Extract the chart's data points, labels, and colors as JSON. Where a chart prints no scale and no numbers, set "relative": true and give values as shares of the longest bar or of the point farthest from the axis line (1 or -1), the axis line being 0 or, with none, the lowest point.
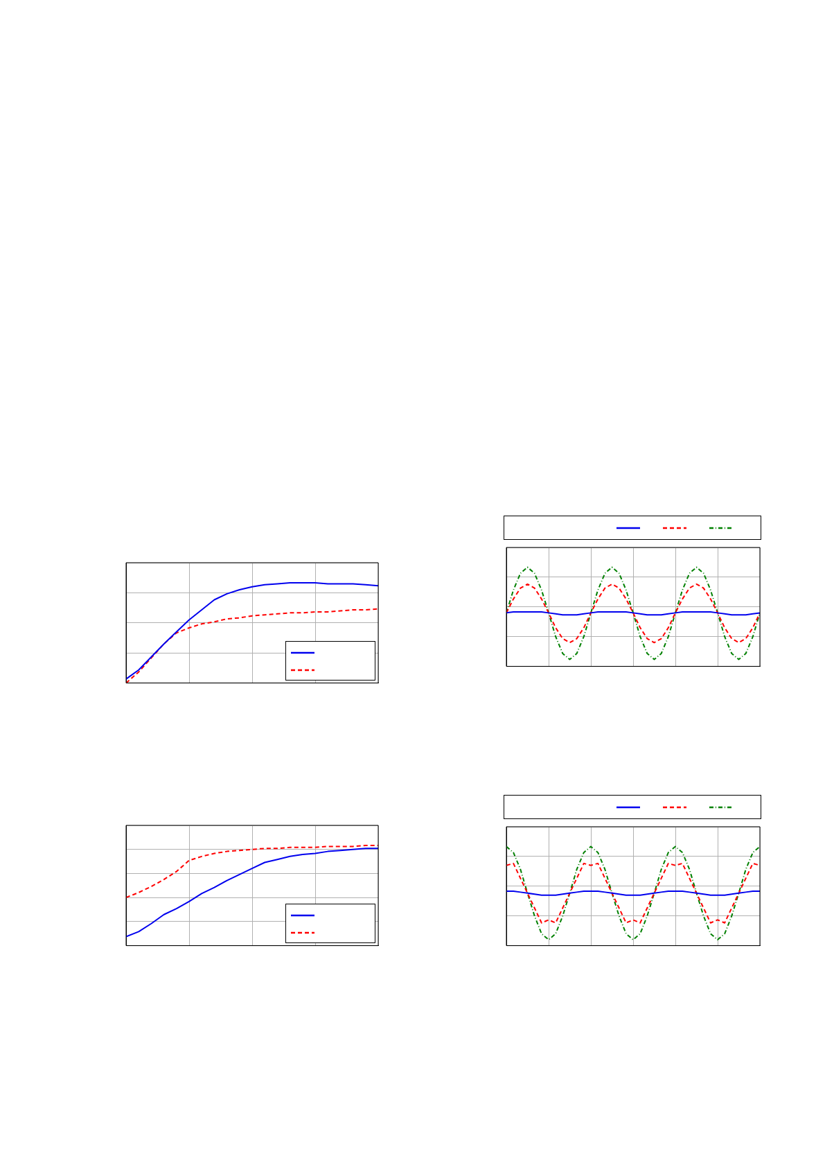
{
  "chart_data": [
    {
      "type": "line",
      "relative": true,
      "grid": true,
      "categories": [
        null,
        null,
        null,
        null,
        null,
        null,
        null,
        null,
        null,
        null,
        null,
        null,
        null,
        null,
        null,
        null,
        null,
        null,
        null,
        null,
        null
      ],
      "series": [
        {
          "color": "#0000ee",
          "line_style": "solid",
          "values": [
            0.04,
            0.13,
            0.26,
            0.39,
            0.51,
            0.63,
            0.73,
            0.83,
            0.89,
            0.93,
            0.96,
            0.98,
            0.99,
            1,
            1,
            1,
            0.99,
            0.99,
            0.99,
            0.98,
            0.97
          ]
        },
        {
          "color": "#ff0000",
          "line_style": "dashed",
          "values": [
            0,
            0.11,
            0.25,
            0.39,
            0.5,
            0.55,
            0.59,
            0.61,
            0.64,
            0.65,
            0.67,
            0.68,
            0.69,
            0.7,
            0.7,
            0.71,
            0.71,
            0.72,
            0.73,
            0.73,
            0.74
          ]
        }
      ]
    },
    {
      "type": "line",
      "relative": true,
      "grid": true,
      "categories": [
        null,
        null,
        null,
        null,
        null,
        null,
        null,
        null,
        null,
        null,
        null,
        null,
        null,
        null,
        null,
        null,
        null,
        null,
        null,
        null,
        null,
        null,
        null,
        null,
        null,
        null,
        null,
        null,
        null,
        null,
        null,
        null,
        null,
        null,
        null,
        null,
        null
      ],
      "series": [
        {
          "color": "#0000ee",
          "line_style": "solid",
          "values": [
            0.54,
            0.55,
            0.55,
            0.55,
            0.55,
            0.55,
            0.54,
            0.53,
            0.52,
            0.52,
            0.52,
            0.53,
            0.54,
            0.55,
            0.55,
            0.55,
            0.55,
            0.55,
            0.54,
            0.53,
            0.52,
            0.52,
            0.52,
            0.53,
            0.54,
            0.55,
            0.55,
            0.55,
            0.55,
            0.55,
            0.54,
            0.53,
            0.52,
            0.52,
            0.52,
            0.53,
            0.54
          ]
        },
        {
          "color": "#ff0000",
          "line_style": "dashed",
          "values": [
            0.54,
            0.68,
            0.79,
            0.83,
            0.79,
            0.68,
            0.54,
            0.39,
            0.28,
            0.24,
            0.28,
            0.39,
            0.54,
            0.68,
            0.79,
            0.83,
            0.79,
            0.68,
            0.54,
            0.39,
            0.28,
            0.24,
            0.28,
            0.39,
            0.54,
            0.68,
            0.79,
            0.83,
            0.79,
            0.68,
            0.54,
            0.39,
            0.28,
            0.24,
            0.28,
            0.39,
            0.54
          ]
        },
        {
          "color": "#008000",
          "line_style": "dotted",
          "values": [
            0.54,
            0.77,
            0.94,
            1,
            0.94,
            0.77,
            0.54,
            0.3,
            0.13,
            0.07,
            0.13,
            0.3,
            0.54,
            0.77,
            0.94,
            1,
            0.94,
            0.77,
            0.54,
            0.3,
            0.13,
            0.07,
            0.13,
            0.3,
            0.54,
            0.77,
            0.94,
            1,
            0.94,
            0.77,
            0.54,
            0.3,
            0.13,
            0.07,
            0.13,
            0.3,
            0.54
          ]
        }
      ]
    },
    {
      "type": "line",
      "relative": true,
      "grid": true,
      "categories": [
        null,
        null,
        null,
        null,
        null,
        null,
        null,
        null,
        null,
        null,
        null,
        null,
        null,
        null,
        null,
        null,
        null,
        null,
        null,
        null,
        null
      ],
      "series": [
        {
          "color": "#0000ee",
          "line_style": "solid",
          "values": [
            0.09,
            0.14,
            0.22,
            0.31,
            0.37,
            0.44,
            0.52,
            0.58,
            0.65,
            0.71,
            0.77,
            0.83,
            0.86,
            0.89,
            0.91,
            0.92,
            0.94,
            0.95,
            0.96,
            0.97,
            0.97
          ]
        },
        {
          "color": "#ff0000",
          "line_style": "dashed",
          "values": [
            0.48,
            0.53,
            0.59,
            0.66,
            0.74,
            0.85,
            0.89,
            0.92,
            0.94,
            0.95,
            0.96,
            0.97,
            0.97,
            0.98,
            0.98,
            0.98,
            0.99,
            0.99,
            0.99,
            1,
            1
          ]
        }
      ]
    },
    {
      "type": "line",
      "relative": true,
      "grid": true,
      "categories": [
        null,
        null,
        null,
        null,
        null,
        null,
        null,
        null,
        null,
        null,
        null,
        null,
        null,
        null,
        null,
        null,
        null,
        null,
        null,
        null,
        null,
        null,
        null,
        null,
        null,
        null,
        null,
        null,
        null,
        null,
        null,
        null,
        null,
        null,
        null,
        null,
        null
      ],
      "series": [
        {
          "color": "#0000ee",
          "line_style": "solid",
          "values": [
            0.55,
            0.55,
            0.54,
            0.53,
            0.52,
            0.51,
            0.51,
            0.51,
            0.52,
            0.53,
            0.54,
            0.55,
            0.55,
            0.55,
            0.54,
            0.53,
            0.52,
            0.51,
            0.51,
            0.51,
            0.52,
            0.53,
            0.54,
            0.55,
            0.55,
            0.55,
            0.54,
            0.53,
            0.52,
            0.51,
            0.51,
            0.51,
            0.52,
            0.53,
            0.54,
            0.55,
            0.55
          ]
        },
        {
          "color": "#ff0000",
          "line_style": "dashed",
          "values": [
            0.81,
            0.83,
            0.68,
            0.53,
            0.38,
            0.23,
            0.26,
            0.23,
            0.38,
            0.53,
            0.68,
            0.83,
            0.81,
            0.83,
            0.68,
            0.53,
            0.38,
            0.23,
            0.26,
            0.23,
            0.38,
            0.53,
            0.68,
            0.83,
            0.81,
            0.83,
            0.68,
            0.53,
            0.38,
            0.23,
            0.26,
            0.23,
            0.38,
            0.53,
            0.68,
            0.83,
            0.81
          ]
        },
        {
          "color": "#008000",
          "line_style": "dotted",
          "values": [
            1,
            0.94,
            0.77,
            0.53,
            0.3,
            0.12,
            0.06,
            0.12,
            0.3,
            0.53,
            0.77,
            0.94,
            1,
            0.94,
            0.77,
            0.53,
            0.3,
            0.12,
            0.06,
            0.12,
            0.3,
            0.53,
            0.77,
            0.94,
            1,
            0.94,
            0.77,
            0.53,
            0.3,
            0.12,
            0.06,
            0.12,
            0.3,
            0.53,
            0.77,
            0.94,
            1
          ]
        }
      ]
    }
  ]
}
